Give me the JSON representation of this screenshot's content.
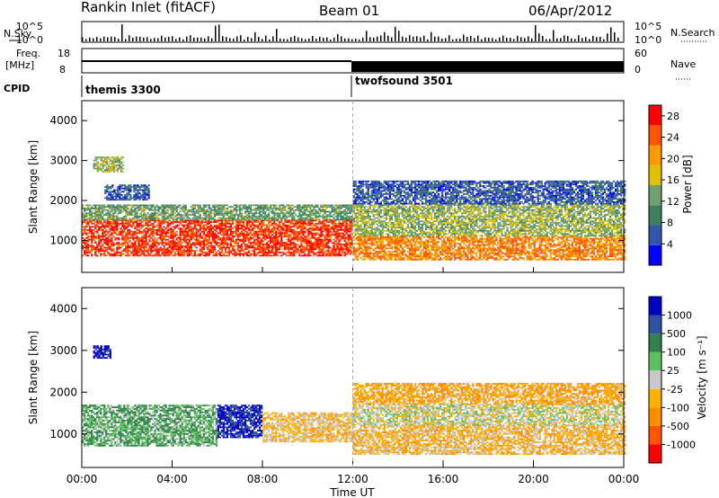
{
  "header": {
    "title": "Rankin Inlet (fitACF)",
    "beam": "Beam 01",
    "date": "06/Apr/2012"
  },
  "status_panel": {
    "nsky_label": "N.Sky",
    "nsearch_label": "N.Search",
    "noise_ticks": [
      "10^5",
      "10^0"
    ],
    "freq_label": "Freq.",
    "freq_unit": "[MHz]",
    "freq_ticks": [
      "18",
      "8"
    ],
    "nave_label": "Nave",
    "nave_ticks": [
      "60",
      "0"
    ],
    "cpid_label": "CPID",
    "cpid_modes": [
      {
        "name": "themis 3300",
        "start_hour": 0
      },
      {
        "name": "twofsound 3501",
        "start_hour": 12
      }
    ]
  },
  "colors": {
    "power_scale": [
      "#0000ff",
      "#3355aa",
      "#408060",
      "#70a070",
      "#e0c000",
      "#ff9900",
      "#ff5500",
      "#ff0000"
    ],
    "velocity_scale": [
      "#ff0000",
      "#ff5500",
      "#ff8c00",
      "#ffb000",
      "#c8c8c8",
      "#60c060",
      "#308050",
      "#3050a0",
      "#0000c0"
    ]
  },
  "chart_data": [
    {
      "type": "heatmap",
      "name": "power",
      "ylabel": "Slant Range [km]",
      "yticks": [
        "1000",
        "2000",
        "3000",
        "4000"
      ],
      "ylim": [
        200,
        4500
      ],
      "xlim": [
        0,
        24
      ],
      "colorbar_label": "Power [dB]",
      "colorbar_ticks": [
        "4",
        "8",
        "12",
        "16",
        "20",
        "24",
        "28"
      ],
      "colorbar_range": [
        0,
        30
      ],
      "regions": [
        {
          "t0": 0.0,
          "t1": 12.0,
          "r0": 600,
          "r1": 1500,
          "value": 26
        },
        {
          "t0": 0.0,
          "t1": 12.0,
          "r0": 1500,
          "r1": 1900,
          "value": 12
        },
        {
          "t0": 0.5,
          "t1": 1.8,
          "r0": 2700,
          "r1": 3100,
          "value": 14
        },
        {
          "t0": 1.0,
          "t1": 3.0,
          "r0": 2000,
          "r1": 2400,
          "value": 6
        },
        {
          "t0": 12.0,
          "t1": 24.0,
          "r0": 500,
          "r1": 1100,
          "value": 22
        },
        {
          "t0": 12.0,
          "t1": 24.0,
          "r0": 1100,
          "r1": 1900,
          "value": 14
        },
        {
          "t0": 12.0,
          "t1": 24.0,
          "r0": 1900,
          "r1": 2500,
          "value": 6
        }
      ]
    },
    {
      "type": "heatmap",
      "name": "velocity",
      "ylabel": "Slant Range [km]",
      "yticks": [
        "1000",
        "2000",
        "3000",
        "4000"
      ],
      "ylim": [
        200,
        4500
      ],
      "xlim": [
        0,
        24
      ],
      "xlabel": "Time UT",
      "xticks": [
        "00:00",
        "04:00",
        "08:00",
        "12:00",
        "16:00",
        "20:00",
        "00:00"
      ],
      "colorbar_label": "Velocity [m s⁻¹]",
      "colorbar_ticks": [
        "1000",
        "500",
        "100",
        "25",
        "-25",
        "-100",
        "-500",
        "-1000"
      ],
      "colorbar_range": [
        -1000,
        1000
      ],
      "regions": [
        {
          "t0": 0.0,
          "t1": 6.0,
          "r0": 700,
          "r1": 1700,
          "value": 300
        },
        {
          "t0": 6.0,
          "t1": 8.0,
          "r0": 900,
          "r1": 1700,
          "value": 800
        },
        {
          "t0": 8.0,
          "t1": 12.0,
          "r0": 800,
          "r1": 1500,
          "value": -150
        },
        {
          "t0": 0.5,
          "t1": 1.3,
          "r0": 2800,
          "r1": 3100,
          "value": 900
        },
        {
          "t0": 12.0,
          "t1": 24.0,
          "r0": 500,
          "r1": 1200,
          "value": -200
        },
        {
          "t0": 12.0,
          "t1": 24.0,
          "r0": 1200,
          "r1": 1700,
          "value": 0
        },
        {
          "t0": 12.0,
          "t1": 24.0,
          "r0": 1700,
          "r1": 2200,
          "value": -300
        }
      ]
    }
  ]
}
